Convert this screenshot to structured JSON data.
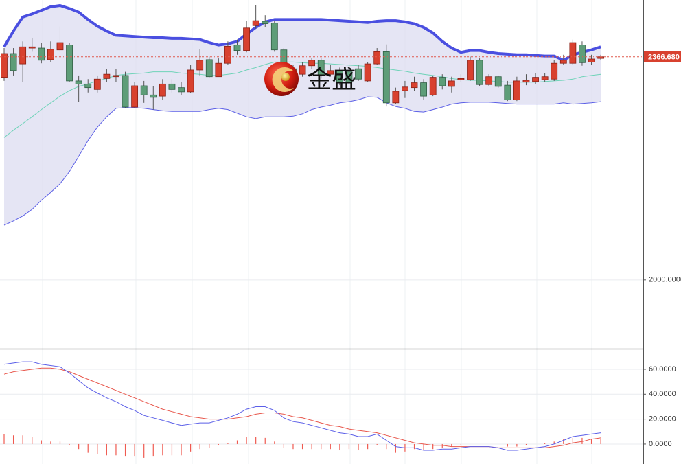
{
  "chart_data": [
    {
      "type": "candlestick",
      "open": [
        2333,
        2372,
        2355,
        2381,
        2381,
        2362,
        2378,
        2386,
        2327,
        2322,
        2313,
        2331,
        2334,
        2336,
        2284,
        2319,
        2304,
        2302,
        2322,
        2316,
        2309,
        2345,
        2362,
        2334,
        2356,
        2386,
        2377,
        2418,
        2425,
        2422,
        2378,
        2347,
        2338,
        2352,
        2361,
        2338,
        2344,
        2342,
        2347,
        2327,
        2355,
        2375,
        2291,
        2311,
        2316,
        2324,
        2304,
        2333,
        2318,
        2329,
        2329,
        2361,
        2321,
        2334,
        2320,
        2296,
        2325,
        2326,
        2329,
        2330,
        2356,
        2356,
        2386,
        2358,
        2364
      ],
      "high": [
        2381,
        2381,
        2392,
        2398,
        2390,
        2392,
        2417,
        2390,
        2336,
        2330,
        2336,
        2347,
        2347,
        2342,
        2325,
        2327,
        2319,
        2330,
        2330,
        2325,
        2353,
        2379,
        2367,
        2364,
        2392,
        2395,
        2426,
        2451,
        2435,
        2426,
        2381,
        2353,
        2358,
        2365,
        2364,
        2353,
        2349,
        2347,
        2353,
        2358,
        2381,
        2387,
        2316,
        2327,
        2334,
        2330,
        2336,
        2338,
        2334,
        2338,
        2367,
        2364,
        2338,
        2336,
        2327,
        2334,
        2338,
        2340,
        2340,
        2361,
        2370,
        2395,
        2392,
        2370,
        2370
      ],
      "low": [
        2327,
        2336,
        2325,
        2375,
        2356,
        2358,
        2374,
        2325,
        2293,
        2308,
        2308,
        2325,
        2325,
        2282,
        2282,
        2291,
        2280,
        2296,
        2308,
        2304,
        2307,
        2336,
        2333,
        2334,
        2353,
        2370,
        2374,
        2413,
        2415,
        2375,
        2325,
        2330,
        2334,
        2347,
        2331,
        2334,
        2320,
        2322,
        2327,
        2325,
        2353,
        2285,
        2289,
        2299,
        2311,
        2296,
        2302,
        2313,
        2308,
        2325,
        2327,
        2318,
        2318,
        2316,
        2294,
        2294,
        2320,
        2322,
        2325,
        2327,
        2353,
        2354,
        2352,
        2353,
        2361
      ],
      "close": [
        2372,
        2344,
        2383,
        2383,
        2361,
        2379,
        2390,
        2327,
        2322,
        2316,
        2330,
        2338,
        2336,
        2284,
        2319,
        2304,
        2300,
        2322,
        2313,
        2309,
        2345,
        2361,
        2334,
        2356,
        2384,
        2377,
        2414,
        2426,
        2421,
        2378,
        2330,
        2336,
        2352,
        2361,
        2336,
        2344,
        2325,
        2325,
        2330,
        2355,
        2375,
        2291,
        2310,
        2317,
        2324,
        2302,
        2333,
        2319,
        2327,
        2331,
        2361,
        2321,
        2334,
        2318,
        2296,
        2327,
        2328,
        2333,
        2334,
        2356,
        2361,
        2390,
        2357,
        2363,
        2366.68
      ],
      "up_color": "#d8412f",
      "down_color": "#5e9d78",
      "upper_band": {
        "color": "#4a4fe0",
        "values": [
          2383,
          2409,
          2432,
          2437,
          2443,
          2449,
          2451,
          2446,
          2440,
          2428,
          2417,
          2409,
          2402,
          2401,
          2400,
          2399,
          2398,
          2398,
          2397,
          2397,
          2396,
          2395,
          2390,
          2386,
          2388,
          2392,
          2404,
          2415,
          2424,
          2428,
          2428,
          2428,
          2428,
          2428,
          2428,
          2427,
          2426,
          2425,
          2424,
          2423,
          2425,
          2426,
          2426,
          2424,
          2421,
          2415,
          2406,
          2392,
          2381,
          2374,
          2377,
          2377,
          2374,
          2372,
          2371,
          2370,
          2370,
          2369,
          2368,
          2368,
          2361,
          2370,
          2374,
          2378,
          2383
        ]
      },
      "middle_band": {
        "color": "#6fd3b8",
        "values": [
          2234,
          2246,
          2257,
          2268,
          2280,
          2291,
          2302,
          2311,
          2318,
          2322,
          2327,
          2331,
          2336,
          2338,
          2339,
          2340,
          2342,
          2342,
          2342,
          2340,
          2339,
          2338,
          2336,
          2336,
          2338,
          2340,
          2345,
          2349,
          2354,
          2358,
          2358,
          2358,
          2357,
          2356,
          2356,
          2355,
          2354,
          2353,
          2352,
          2351,
          2349,
          2347,
          2345,
          2343,
          2340,
          2338,
          2336,
          2334,
          2331,
          2329,
          2328,
          2328,
          2327,
          2326,
          2325,
          2325,
          2325,
          2325,
          2326,
          2327,
          2328,
          2330,
          2334,
          2336,
          2338
        ]
      },
      "lower_band": {
        "color": "#5a5ee6",
        "values": [
          2090,
          2097,
          2105,
          2116,
          2131,
          2144,
          2158,
          2178,
          2203,
          2229,
          2251,
          2268,
          2282,
          2283,
          2283,
          2282,
          2280,
          2278,
          2277,
          2277,
          2277,
          2277,
          2280,
          2282,
          2280,
          2274,
          2268,
          2265,
          2268,
          2268,
          2268,
          2269,
          2273,
          2280,
          2284,
          2287,
          2291,
          2293,
          2296,
          2301,
          2300,
          2291,
          2285,
          2282,
          2277,
          2276,
          2280,
          2284,
          2289,
          2291,
          2292,
          2292,
          2292,
          2291,
          2290,
          2289,
          2289,
          2289,
          2289,
          2289,
          2291,
          2289,
          2290,
          2291,
          2293
        ]
      },
      "band_fill": "#dcdcf0",
      "ylim": [
        1887,
        2460
      ],
      "yticks": [
        {
          "value": 2000,
          "label": "2000.0000"
        }
      ],
      "last_price": {
        "value": 2366.68,
        "label": "2366.680"
      },
      "watermark": "金盛"
    },
    {
      "type": "macd",
      "dif": {
        "color": "#5b5fe8",
        "values": [
          64,
          65,
          66,
          66,
          64,
          63,
          62,
          57,
          51,
          45,
          41,
          37,
          34,
          30,
          27,
          23,
          21,
          19,
          17,
          15,
          16,
          17,
          17,
          19,
          21,
          24,
          28,
          30,
          30,
          27,
          21,
          18,
          17,
          15,
          13,
          11,
          9,
          8,
          6,
          6,
          8,
          3,
          -2,
          -3,
          -3,
          -5,
          -5,
          -4,
          -4,
          -3,
          -2,
          -2,
          -2,
          -3,
          -5,
          -5,
          -4,
          -3,
          -2,
          0,
          3,
          6,
          7,
          8,
          9
        ]
      },
      "dea": {
        "color": "#e8574c",
        "values": [
          56,
          58,
          59,
          60,
          61,
          61,
          60,
          58,
          55,
          52,
          49,
          46,
          43,
          40,
          37,
          34,
          31,
          28,
          26,
          24,
          22,
          21,
          20,
          20,
          20,
          21,
          22,
          24,
          25,
          25,
          24,
          22,
          21,
          19,
          17,
          15,
          14,
          12,
          11,
          10,
          9,
          7,
          5,
          3,
          1,
          0,
          -1,
          -1,
          -2,
          -2,
          -2,
          -2,
          -2,
          -3,
          -3,
          -3,
          -3,
          -3,
          -3,
          -2,
          -1,
          1,
          2,
          4,
          5
        ]
      },
      "histogram": {
        "color": "#ef5a50",
        "values": [
          8,
          7,
          7,
          6,
          3,
          2,
          2,
          -1,
          -4,
          -7,
          -8,
          -9,
          -9,
          -10,
          -10,
          -11,
          -10,
          -9,
          -9,
          -9,
          -6,
          -4,
          -3,
          -1,
          1,
          3,
          6,
          6,
          5,
          2,
          -3,
          -4,
          -4,
          -4,
          -4,
          -4,
          -5,
          -4,
          -5,
          -4,
          -1,
          -4,
          -7,
          -6,
          -4,
          -5,
          -4,
          -3,
          -2,
          -1,
          0,
          0,
          0,
          0,
          -2,
          -2,
          -1,
          0,
          1,
          2,
          4,
          5,
          5,
          4,
          4
        ]
      },
      "ylim": [
        -16,
        75.4
      ],
      "yticks": [
        {
          "value": 60,
          "label": "60.0000"
        },
        {
          "value": 40,
          "label": "40.0000"
        },
        {
          "value": 20,
          "label": "20.0000"
        },
        {
          "value": 0,
          "label": "0.0000"
        }
      ]
    }
  ]
}
